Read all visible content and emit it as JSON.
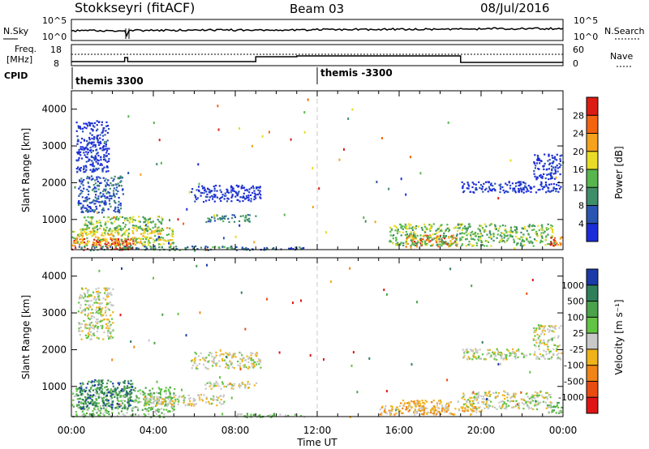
{
  "header": {
    "station": "Stokkseyri (fitACF)",
    "beam": "Beam 03",
    "date": "08/Jul/2016"
  },
  "status_panels": {
    "nsky_label": "N.Sky",
    "nsearch_label": "N.Search",
    "noise_ticks": [
      "10^5",
      "10^0"
    ],
    "freq_label_1": "Freq.",
    "freq_label_2": "[MHz]",
    "freq_ticks": [
      "18",
      "8"
    ],
    "nave_label": "Nave",
    "nave_ticks": [
      "60",
      "0"
    ],
    "cpid_label": "CPID",
    "cpid_segments": [
      {
        "name": "themis 3300",
        "start": 0
      },
      {
        "name": "themis -3300",
        "start": 12
      }
    ]
  },
  "colors": {
    "axis": "#000000",
    "status_line": "#000000",
    "midnight_dash": "#c8c8c8"
  },
  "chart_data": [
    {
      "type": "heatmap",
      "title": "",
      "xlabel": "Time UT",
      "ylabel": "Slant Range [km]",
      "xlim": [
        0,
        24
      ],
      "ylim": [
        180,
        4500
      ],
      "xticks": [
        "00:00",
        "04:00",
        "08:00",
        "12:00",
        "16:00",
        "20:00",
        "00:00"
      ],
      "yticks": [
        "1000",
        "2000",
        "3000",
        "4000"
      ],
      "colorbar": {
        "label": "Power [dB]",
        "ticks": [
          "4",
          "8",
          "12",
          "16",
          "20",
          "24",
          "28"
        ],
        "colors": [
          "#1c2cd8",
          "#2a55b0",
          "#3f8e6a",
          "#58b64e",
          "#e8dc26",
          "#f5a21c",
          "#f26410",
          "#dc1c14"
        ]
      },
      "regions": [
        {
          "t0": 0.0,
          "t1": 3.0,
          "r0": 180,
          "r1": 500,
          "level": 7
        },
        {
          "t0": 0.0,
          "t1": 5.0,
          "r0": 300,
          "r1": 800,
          "level": 4
        },
        {
          "t0": 0.3,
          "t1": 8.0,
          "r0": 180,
          "r1": 300,
          "level": 2
        },
        {
          "t0": 0.5,
          "t1": 4.5,
          "r0": 700,
          "r1": 1100,
          "level": 3
        },
        {
          "t0": 0.3,
          "t1": 2.5,
          "r0": 1200,
          "r1": 2200,
          "level": 1
        },
        {
          "t0": 0.2,
          "t1": 1.8,
          "r0": 2300,
          "r1": 3700,
          "level": 0
        },
        {
          "t0": 5.8,
          "t1": 9.2,
          "r0": 1500,
          "r1": 1950,
          "level": 0
        },
        {
          "t0": 6.5,
          "t1": 9.0,
          "r0": 950,
          "r1": 1150,
          "level": 2
        },
        {
          "t0": 8.0,
          "t1": 11.5,
          "r0": 180,
          "r1": 280,
          "level": 1
        },
        {
          "t0": 16.2,
          "t1": 18.8,
          "r0": 280,
          "r1": 600,
          "level": 6
        },
        {
          "t0": 15.5,
          "t1": 23.5,
          "r0": 300,
          "r1": 900,
          "level": 3
        },
        {
          "t0": 19.0,
          "t1": 23.9,
          "r0": 1750,
          "r1": 2050,
          "level": 0
        },
        {
          "t0": 22.5,
          "t1": 23.9,
          "r0": 2100,
          "r1": 2800,
          "level": 0
        },
        {
          "t0": 23.3,
          "t1": 23.9,
          "r0": 300,
          "r1": 550,
          "level": 6
        }
      ]
    },
    {
      "type": "heatmap",
      "title": "",
      "xlabel": "Time UT",
      "ylabel": "Slant Range [km]",
      "xlim": [
        0,
        24
      ],
      "ylim": [
        180,
        4500
      ],
      "xticks": [
        "00:00",
        "04:00",
        "08:00",
        "12:00",
        "16:00",
        "20:00",
        "00:00"
      ],
      "yticks": [
        "1000",
        "2000",
        "3000",
        "4000"
      ],
      "colorbar": {
        "label": "Velocity [m s⁻¹]",
        "ticks": [
          "1000",
          "500",
          "100",
          "25",
          "-25",
          "-100",
          "-500",
          "-1000"
        ],
        "colors": [
          "#1a3aa8",
          "#2f7f5a",
          "#4aa24a",
          "#62c444",
          "#c8c8c8",
          "#f0b41a",
          "#f08414",
          "#e84c10",
          "#e01414"
        ]
      },
      "regions": [
        {
          "t0": 0.0,
          "t1": 5.0,
          "r0": 180,
          "r1": 1000,
          "level": 3
        },
        {
          "t0": 0.3,
          "t1": 3.0,
          "r0": 400,
          "r1": 1200,
          "level": 1
        },
        {
          "t0": 3.5,
          "t1": 7.5,
          "r0": 500,
          "r1": 800,
          "level": 4
        },
        {
          "t0": 5.8,
          "t1": 9.2,
          "r0": 1500,
          "r1": 1950,
          "level": 4
        },
        {
          "t0": 6.5,
          "t1": 9.0,
          "r0": 950,
          "r1": 1150,
          "level": 4
        },
        {
          "t0": 0.3,
          "t1": 2.0,
          "r0": 2300,
          "r1": 3700,
          "level": 4
        },
        {
          "t0": 8.0,
          "t1": 11.5,
          "r0": 180,
          "r1": 280,
          "level": 3
        },
        {
          "t0": 16.0,
          "t1": 18.5,
          "r0": 280,
          "r1": 650,
          "level": 5
        },
        {
          "t0": 15.0,
          "t1": 20.0,
          "r0": 250,
          "r1": 500,
          "level": 5
        },
        {
          "t0": 19.0,
          "t1": 23.5,
          "r0": 400,
          "r1": 900,
          "level": 4
        },
        {
          "t0": 19.0,
          "t1": 23.9,
          "r0": 1750,
          "r1": 2050,
          "level": 4
        },
        {
          "t0": 22.5,
          "t1": 23.9,
          "r0": 2100,
          "r1": 2700,
          "level": 4
        },
        {
          "t0": 23.2,
          "t1": 23.9,
          "r0": 300,
          "r1": 600,
          "level": 3
        }
      ]
    }
  ]
}
